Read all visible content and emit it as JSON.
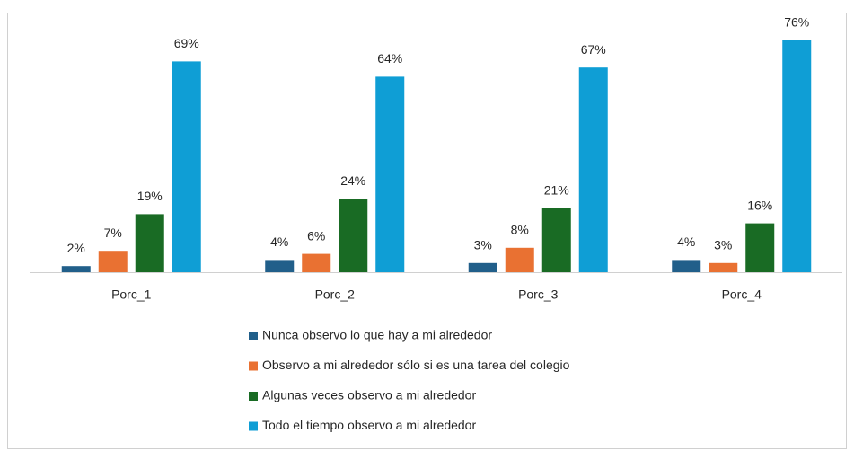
{
  "chart_data": {
    "type": "bar",
    "categories": [
      "Porc_1",
      "Porc_2",
      "Porc_3",
      "Porc_4"
    ],
    "series": [
      {
        "name": "Nunca observo lo que hay a mi alrededor",
        "color": "#215f8a",
        "values": [
          2,
          4,
          3,
          4
        ],
        "value_labels": [
          "2%",
          "4%",
          "3%",
          "4%"
        ]
      },
      {
        "name": "Observo a mi alrededor sólo si es una tarea del colegio",
        "color": "#e97132",
        "values": [
          7,
          6,
          8,
          3
        ],
        "value_labels": [
          "7%",
          "6%",
          "8%",
          "3%"
        ]
      },
      {
        "name": "Algunas veces observo a mi alrededor",
        "color": "#196b24",
        "values": [
          19,
          24,
          21,
          16
        ],
        "value_labels": [
          "19%",
          "24%",
          "21%",
          "16%"
        ]
      },
      {
        "name": "Todo el tiempo observo a mi alrededor",
        "color": "#0f9ed5",
        "values": [
          69,
          64,
          67,
          76
        ],
        "value_labels": [
          "69%",
          "64%",
          "67%",
          "76%"
        ]
      }
    ],
    "legend": "bottom"
  }
}
